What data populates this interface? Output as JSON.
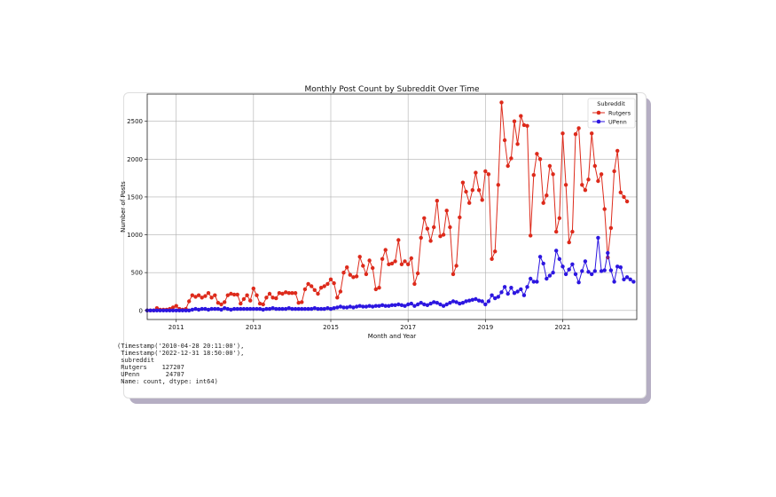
{
  "chart_data": {
    "type": "line",
    "title": "Monthly Post Count by Subreddit Over Time",
    "xlabel": "Month and Year",
    "ylabel": "Number of Posts",
    "x_ticks": [
      "2011",
      "2013",
      "2015",
      "2017",
      "2019",
      "2021"
    ],
    "y_ticks": [
      "0",
      "500",
      "1000",
      "1500",
      "2000",
      "2500"
    ],
    "x_range": [
      "2010-04",
      "2022-12"
    ],
    "ylim": [
      -120,
      2860
    ],
    "grid": true,
    "legend": {
      "title": "Subreddit",
      "position": "top-right"
    },
    "series": [
      {
        "name": "Rutgers",
        "color": "#dd2a1b",
        "start": "2010-04",
        "values": [
          0,
          0,
          0,
          30,
          10,
          10,
          10,
          20,
          40,
          60,
          20,
          10,
          20,
          120,
          200,
          180,
          200,
          170,
          190,
          230,
          170,
          200,
          100,
          80,
          110,
          200,
          220,
          210,
          210,
          90,
          150,
          200,
          130,
          290,
          200,
          90,
          80,
          170,
          220,
          170,
          160,
          230,
          220,
          240,
          230,
          230,
          230,
          100,
          110,
          280,
          350,
          320,
          270,
          220,
          300,
          320,
          350,
          410,
          360,
          170,
          250,
          500,
          570,
          470,
          440,
          450,
          710,
          590,
          480,
          660,
          560,
          280,
          300,
          680,
          800,
          610,
          620,
          650,
          930,
          610,
          650,
          610,
          690,
          350,
          490,
          960,
          1220,
          1080,
          920,
          1100,
          1450,
          980,
          1000,
          1320,
          1100,
          480,
          590,
          1230,
          1690,
          1570,
          1420,
          1590,
          1820,
          1590,
          1460,
          1840,
          1800,
          680,
          780,
          1660,
          2750,
          2250,
          1910,
          2010,
          2500,
          2200,
          2570,
          2450,
          2440,
          990,
          1790,
          2070,
          2000,
          1420,
          1520,
          1910,
          1800,
          1040,
          1220,
          2340,
          1660,
          900,
          1040,
          2330,
          2410,
          1660,
          1590,
          1730,
          2340,
          1910,
          1710,
          1800,
          1340,
          700,
          1090,
          1840,
          2110,
          1560,
          1500,
          1440
        ]
      },
      {
        "name": "UPenn",
        "color": "#2c16e0",
        "start": "2010-04",
        "values": [
          0,
          0,
          0,
          0,
          0,
          0,
          0,
          0,
          0,
          0,
          0,
          0,
          0,
          0,
          10,
          20,
          10,
          20,
          20,
          10,
          20,
          20,
          20,
          10,
          30,
          20,
          10,
          20,
          20,
          20,
          20,
          20,
          20,
          20,
          20,
          20,
          10,
          20,
          20,
          30,
          20,
          20,
          20,
          20,
          30,
          20,
          20,
          20,
          20,
          20,
          20,
          20,
          30,
          20,
          20,
          20,
          30,
          20,
          30,
          40,
          50,
          40,
          40,
          50,
          40,
          50,
          60,
          50,
          50,
          60,
          50,
          60,
          60,
          70,
          60,
          60,
          70,
          70,
          80,
          70,
          60,
          80,
          90,
          60,
          80,
          100,
          80,
          70,
          90,
          110,
          100,
          80,
          60,
          80,
          100,
          120,
          110,
          90,
          100,
          120,
          130,
          140,
          150,
          130,
          120,
          80,
          120,
          200,
          160,
          180,
          240,
          310,
          220,
          300,
          230,
          250,
          280,
          200,
          310,
          420,
          380,
          380,
          710,
          620,
          420,
          460,
          500,
          790,
          680,
          580,
          480,
          540,
          610,
          480,
          370,
          520,
          650,
          510,
          480,
          520,
          960,
          520,
          530,
          760,
          530,
          380,
          580,
          570,
          410,
          440,
          410,
          380
        ]
      }
    ]
  },
  "output_lines": [
    "(Timestamp('2010-04-28 20:11:00'),",
    " Timestamp('2022-12-31 18:50:00'),",
    " subreddit",
    " Rutgers    127207",
    " UPenn       24707",
    " Name: count, dtype: int64)"
  ]
}
